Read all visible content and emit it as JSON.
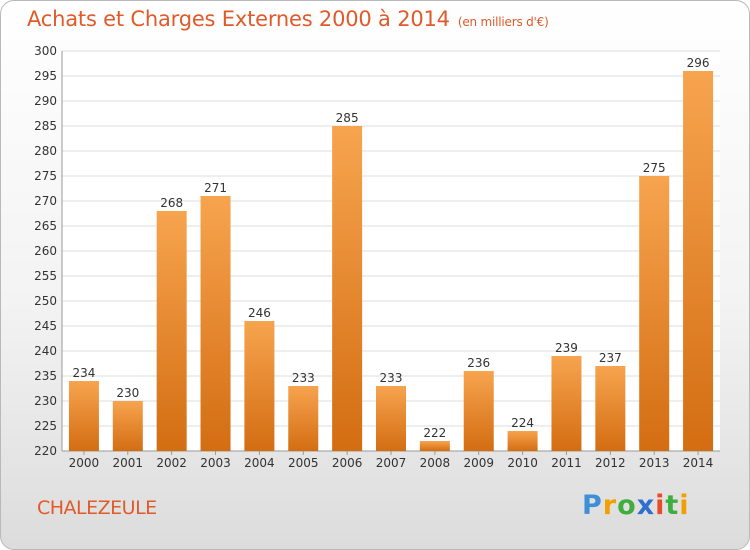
{
  "header": {
    "title": "Achats et Charges Externes 2000 à 2014",
    "unit": "(en milliers d'€)"
  },
  "footer": {
    "place": "CHALEZEULE",
    "brand": "Proxiti"
  },
  "colors": {
    "title": "#e05a2a",
    "bar_top": "#f7a44f",
    "bar_bottom": "#d36d12",
    "grid": "#dddddd"
  },
  "chart_data": {
    "type": "bar",
    "categories": [
      "2000",
      "2001",
      "2002",
      "2003",
      "2004",
      "2005",
      "2006",
      "2007",
      "2008",
      "2009",
      "2010",
      "2011",
      "2012",
      "2013",
      "2014"
    ],
    "values": [
      234,
      230,
      268,
      271,
      246,
      233,
      285,
      233,
      222,
      236,
      224,
      239,
      237,
      275,
      296
    ],
    "ylim": [
      220,
      300
    ],
    "yticks": [
      220,
      225,
      230,
      235,
      240,
      245,
      250,
      255,
      260,
      265,
      270,
      275,
      280,
      285,
      290,
      295,
      300
    ],
    "grid": true,
    "xlabel": "",
    "ylabel": ""
  }
}
